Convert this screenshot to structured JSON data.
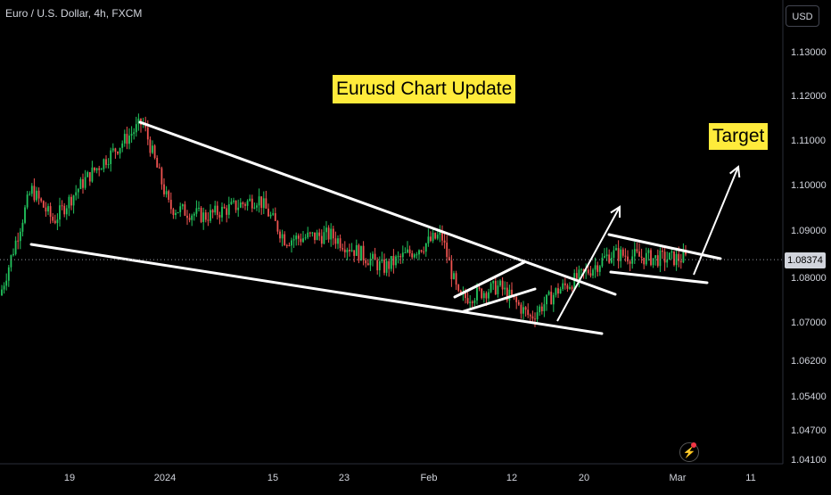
{
  "header": {
    "symbol": "Euro / U.S. Dollar, 4h, FXCM",
    "currency": "USD"
  },
  "annotations": {
    "title": "Eurusd Chart Update",
    "target": "Target"
  },
  "current_price": "1.08374",
  "colors": {
    "background": "#000000",
    "up": "#26a69a",
    "up_bright": "#22c55e",
    "down": "#ef5350",
    "drawing": "#ffffff",
    "callout": "#ffeb3b"
  },
  "icons": {
    "alert": "lightning-icon"
  },
  "chart_data": {
    "type": "candlestick",
    "title": "Eurusd Chart Update",
    "x_ticks": [
      "19",
      "2024",
      "15",
      "23",
      "Feb",
      "12",
      "20",
      "Mar",
      "11"
    ],
    "y_ticks": [
      "1.13000",
      "1.12000",
      "1.11000",
      "1.10000",
      "1.09000",
      "1.08000",
      "1.07000",
      "1.06200",
      "1.05400",
      "1.04700",
      "1.04100"
    ],
    "current_price": 1.08374,
    "approx_close_path": [
      {
        "date": "Dec 12",
        "close": 1.076
      },
      {
        "date": "Dec 14",
        "close": 1.099
      },
      {
        "date": "Dec 18",
        "close": 1.092
      },
      {
        "date": "Dec 21",
        "close": 1.101
      },
      {
        "date": "Dec 28",
        "close": 1.114
      },
      {
        "date": "Jan 2",
        "close": 1.095
      },
      {
        "date": "Jan 5",
        "close": 1.093
      },
      {
        "date": "Jan 12",
        "close": 1.097
      },
      {
        "date": "Jan 18",
        "close": 1.088
      },
      {
        "date": "Jan 24",
        "close": 1.089
      },
      {
        "date": "Jan 31",
        "close": 1.082
      },
      {
        "date": "Feb 2",
        "close": 1.089
      },
      {
        "date": "Feb 5",
        "close": 1.075
      },
      {
        "date": "Feb 8",
        "close": 1.078
      },
      {
        "date": "Feb 13",
        "close": 1.071
      },
      {
        "date": "Feb 16",
        "close": 1.077
      },
      {
        "date": "Feb 20",
        "close": 1.08
      },
      {
        "date": "Feb 23",
        "close": 1.085
      },
      {
        "date": "Feb 27",
        "close": 1.084
      },
      {
        "date": "Mar 1",
        "close": 1.084
      }
    ]
  }
}
